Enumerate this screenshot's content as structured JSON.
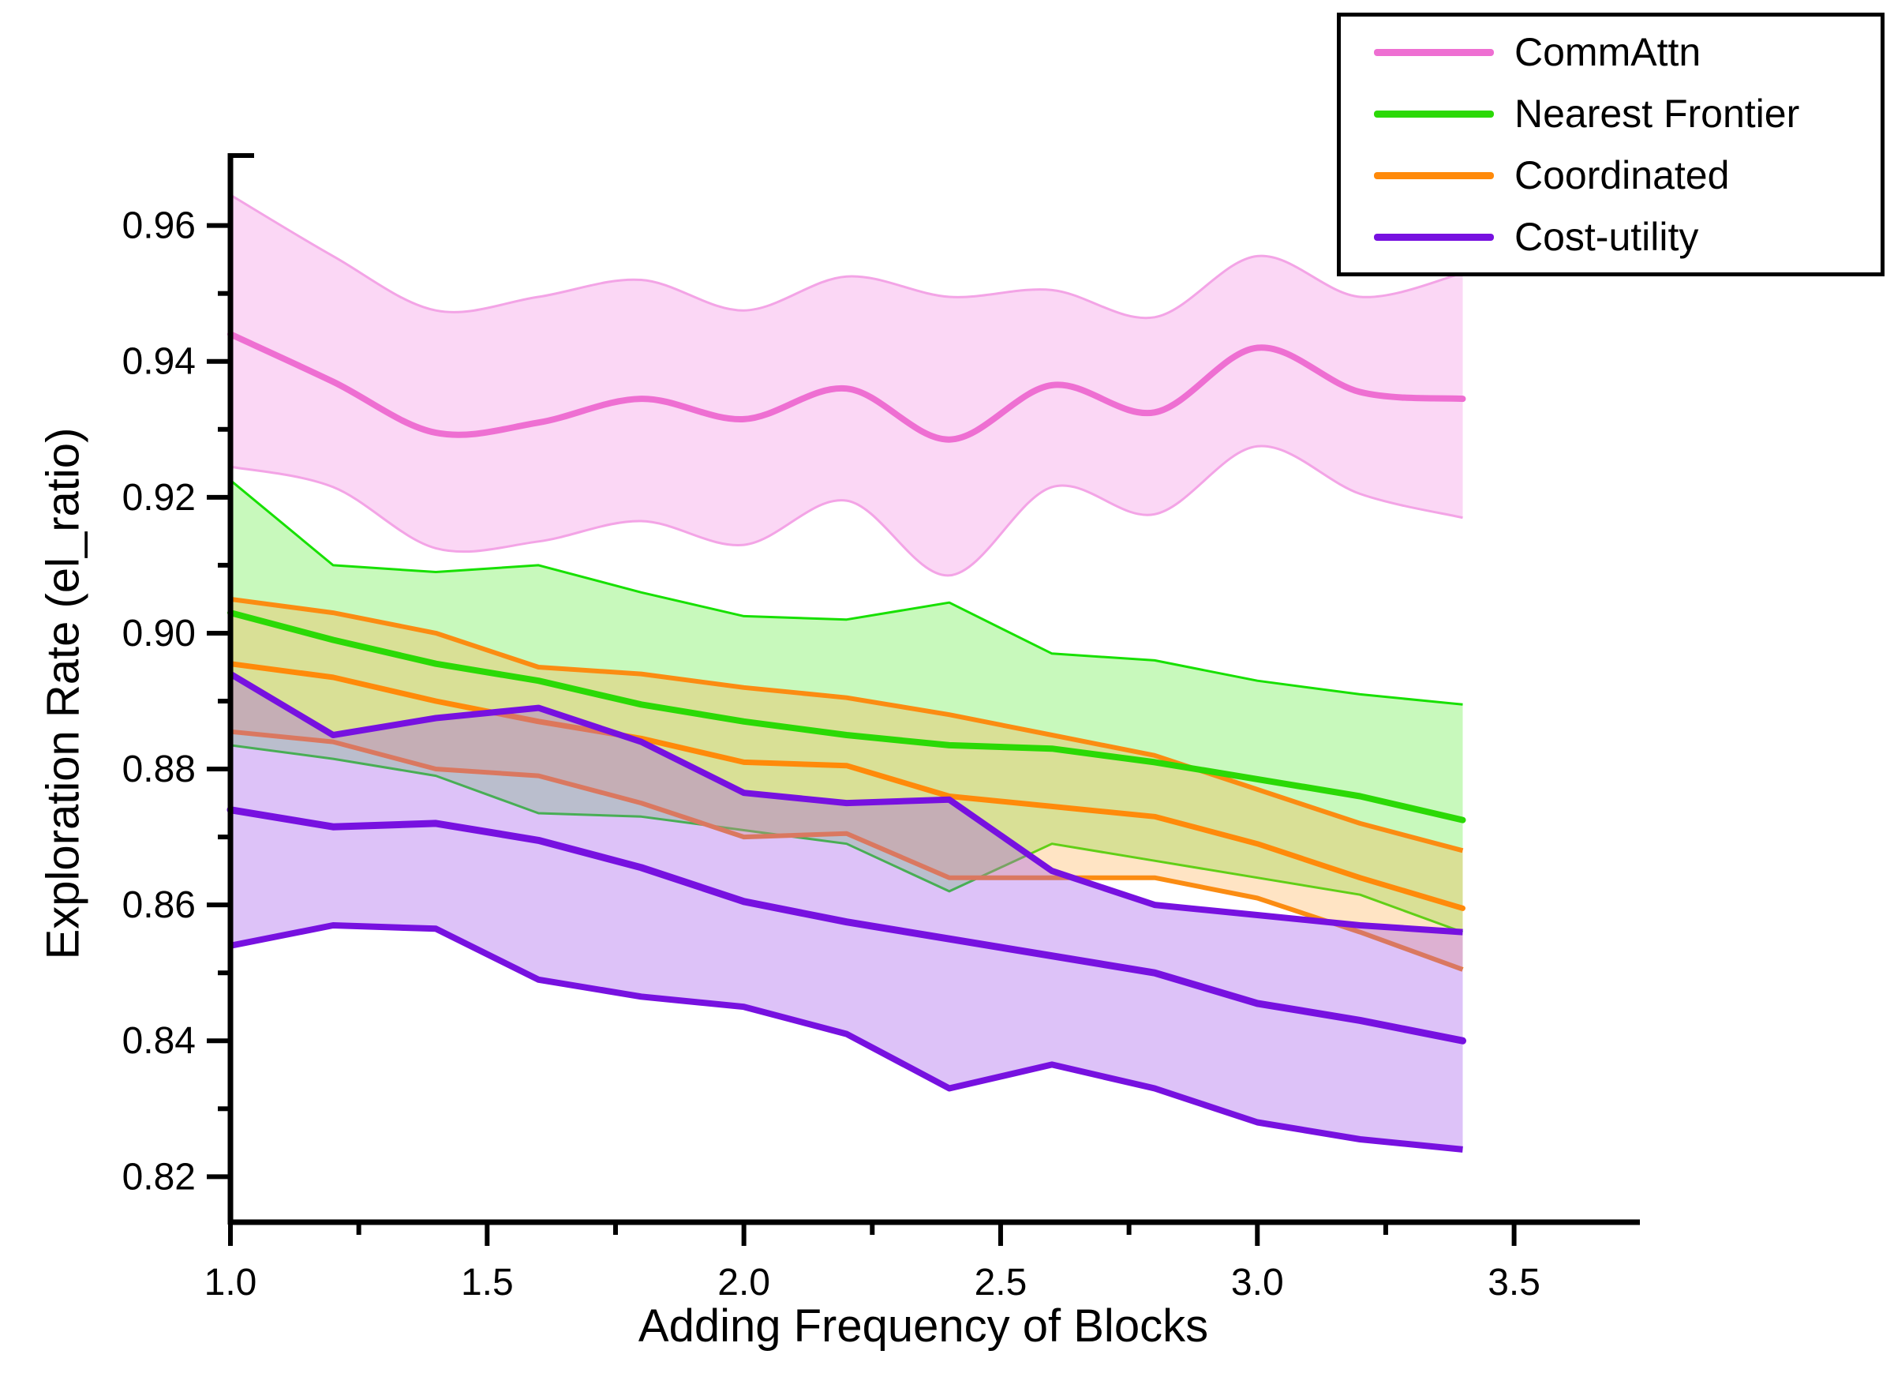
{
  "chart_data": {
    "type": "line",
    "title": "",
    "xlabel": "Adding Frequency of Blocks",
    "ylabel": "Exploration Rate (el_ratio)",
    "xlim": [
      1.0,
      3.745
    ],
    "ylim": [
      0.8133,
      0.9703
    ],
    "x_major_ticks": [
      1.0,
      1.5,
      2.0,
      2.5,
      3.0,
      3.5
    ],
    "x_minor_ticks": [
      1.25,
      1.75,
      2.25,
      2.75,
      3.25,
      3.75
    ],
    "y_major_ticks": [
      0.82,
      0.84,
      0.86,
      0.88,
      0.9,
      0.92,
      0.94,
      0.96
    ],
    "y_minor_ticks": [
      0.83,
      0.85,
      0.87,
      0.89,
      0.91,
      0.93,
      0.95
    ],
    "grid": false,
    "legend_position": "top-right",
    "x": [
      1.0,
      1.2,
      1.4,
      1.6,
      1.8,
      2.0,
      2.2,
      2.4,
      2.6,
      2.8,
      3.0,
      3.2,
      3.4
    ],
    "series": [
      {
        "name": "CommAttn",
        "color": "#ee6fd2",
        "edge_color": "#f3a4e6",
        "fill": "rgba(246,160,232,0.42)",
        "smooth": true,
        "mean": [
          0.944,
          0.937,
          0.9295,
          0.931,
          0.9345,
          0.9315,
          0.936,
          0.9285,
          0.9365,
          0.9325,
          0.942,
          0.9355,
          0.9345
        ],
        "upper": [
          0.9645,
          0.9555,
          0.9475,
          0.9495,
          0.952,
          0.9475,
          0.9525,
          0.9495,
          0.9505,
          0.9465,
          0.9555,
          0.9495,
          0.953
        ],
        "lower": [
          0.9245,
          0.9215,
          0.9125,
          0.9135,
          0.9165,
          0.913,
          0.9195,
          0.9085,
          0.9215,
          0.9175,
          0.9275,
          0.9205,
          0.917
        ]
      },
      {
        "name": "Nearest Frontier",
        "color": "#2bd906",
        "edge_color": "#17e000",
        "fill": "rgba(110,240,80,0.38)",
        "smooth": false,
        "mean": [
          0.903,
          0.899,
          0.8955,
          0.893,
          0.8895,
          0.887,
          0.885,
          0.8835,
          0.883,
          0.881,
          0.8785,
          0.876,
          0.8725
        ],
        "upper": [
          0.9225,
          0.91,
          0.909,
          0.91,
          0.906,
          0.9025,
          0.902,
          0.9045,
          0.897,
          0.896,
          0.893,
          0.891,
          0.8895
        ],
        "lower": [
          0.8835,
          0.8815,
          0.879,
          0.8735,
          0.873,
          0.871,
          0.869,
          0.862,
          0.869,
          0.8665,
          0.864,
          0.8615,
          0.856
        ]
      },
      {
        "name": "Coordinated",
        "color": "#ff8a0a",
        "edge_color": "#fb8c12",
        "fill": "rgba(255,170,70,0.32)",
        "smooth": false,
        "mean": [
          0.8955,
          0.8935,
          0.89,
          0.887,
          0.8845,
          0.881,
          0.8805,
          0.876,
          0.8745,
          0.873,
          0.869,
          0.864,
          0.8595
        ],
        "upper": [
          0.905,
          0.903,
          0.9,
          0.895,
          0.894,
          0.892,
          0.8905,
          0.888,
          0.885,
          0.882,
          0.877,
          0.872,
          0.868
        ],
        "lower": [
          0.8855,
          0.884,
          0.88,
          0.879,
          0.875,
          0.87,
          0.8705,
          0.864,
          0.864,
          0.864,
          0.861,
          0.856,
          0.8505
        ]
      },
      {
        "name": "Cost-utility",
        "color": "#7711e0",
        "edge_color": "#7711e0",
        "fill": "rgba(160,85,235,0.36)",
        "smooth": false,
        "mean": [
          0.874,
          0.8715,
          0.872,
          0.8695,
          0.8655,
          0.8605,
          0.8575,
          0.855,
          0.8525,
          0.85,
          0.8455,
          0.843,
          0.84
        ],
        "upper": [
          0.894,
          0.885,
          0.8875,
          0.889,
          0.884,
          0.8765,
          0.875,
          0.8755,
          0.865,
          0.86,
          0.8585,
          0.857,
          0.856
        ],
        "lower": [
          0.854,
          0.857,
          0.8565,
          0.849,
          0.8465,
          0.845,
          0.841,
          0.833,
          0.8365,
          0.833,
          0.828,
          0.8255,
          0.824
        ]
      }
    ]
  }
}
